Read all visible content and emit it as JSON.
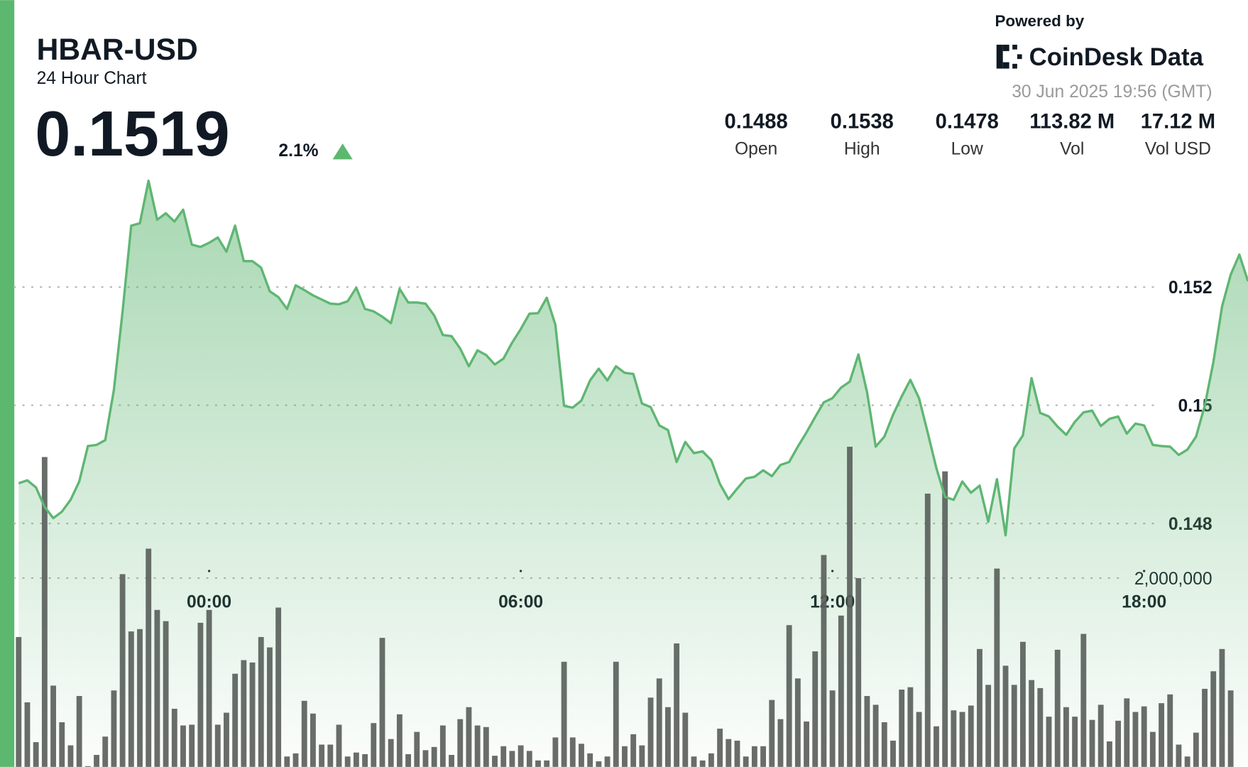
{
  "header": {
    "powered_by": "Powered by",
    "brand": "CoinDesk Data",
    "timestamp": "30 Jun 2025 19:56 (GMT)",
    "price": 0.1519,
    "change": "2.1%",
    "stats": [
      {
        "value": 0.1488,
        "label": "Open"
      },
      {
        "value": 0.1538,
        "label": "High"
      },
      {
        "value": 0.1478,
        "label": "Low"
      },
      {
        "value": "113.82 M",
        "label": "Vol"
      },
      {
        "value": "17.12 M",
        "label": "Vol USD"
      }
    ]
  },
  "chart_data": {
    "type": "line",
    "title": "HBAR-USD",
    "subtitle": "24 Hour Chart",
    "x": [
      -220,
      -210,
      -200,
      -190,
      -180,
      -170,
      -160,
      -150,
      -140,
      -130,
      -120,
      -110,
      -100,
      -90,
      -80,
      -70,
      -60,
      -50,
      -40,
      -30,
      -20,
      -10,
      0,
      10,
      20,
      30,
      40,
      50,
      60,
      70,
      80,
      90,
      100,
      110,
      120,
      130,
      140,
      150,
      160,
      170,
      180,
      190,
      200,
      210,
      220,
      230,
      240,
      250,
      260,
      270,
      280,
      290,
      300,
      310,
      320,
      330,
      340,
      350,
      360,
      370,
      380,
      390,
      400,
      410,
      420,
      430,
      440,
      450,
      460,
      470,
      480,
      490,
      500,
      510,
      520,
      530,
      540,
      550,
      560,
      570,
      580,
      590,
      600,
      610,
      620,
      630,
      640,
      650,
      660,
      670,
      680,
      690,
      700,
      710,
      720,
      730,
      740,
      750,
      760,
      770,
      780,
      790,
      800,
      810,
      820,
      830,
      840,
      850,
      860,
      870,
      880,
      890,
      900,
      910,
      920,
      930,
      940,
      950,
      960,
      970,
      980,
      990,
      1000,
      1010,
      1020,
      1030,
      1040,
      1050,
      1060,
      1070,
      1080,
      1090,
      1100,
      1110,
      1120,
      1130,
      1140,
      1150,
      1160,
      1170,
      1180,
      1190,
      1200
    ],
    "xlim": [
      -225,
      1200
    ],
    "xticks": [
      {
        "value": 0,
        "label": "00:00"
      },
      {
        "value": 360,
        "label": "06:00"
      },
      {
        "value": 720,
        "label": "12:00"
      },
      {
        "value": 1080,
        "label": "18:00"
      }
    ],
    "ylim": [
      0.14388,
      0.15396
    ],
    "yticks": [
      0.148,
      0.15,
      0.152
    ],
    "y2lim": [
      0,
      6310000
    ],
    "y2ticks": [
      {
        "value": 2000000,
        "label": "2,000,000"
      }
    ],
    "grid": true,
    "series": [
      {
        "color": "#5fb672",
        "values": [
          0.14868,
          0.14873,
          0.14861,
          0.14828,
          0.14809,
          0.1482,
          0.1484,
          0.14871,
          0.14931,
          0.14933,
          0.14941,
          0.15026,
          0.15158,
          0.15304,
          0.15308,
          0.1538,
          0.15314,
          0.15325,
          0.15311,
          0.15331,
          0.15272,
          0.15268,
          0.15275,
          0.15284,
          0.1526,
          0.15304,
          0.15244,
          0.15244,
          0.15233,
          0.15193,
          0.15183,
          0.15163,
          0.15203,
          0.15195,
          0.15186,
          0.15179,
          0.15172,
          0.15171,
          0.15176,
          0.15199,
          0.15163,
          0.15159,
          0.1515,
          0.15139,
          0.15197,
          0.15174,
          0.15174,
          0.15172,
          0.15152,
          0.15119,
          0.15117,
          0.15096,
          0.15066,
          0.15093,
          0.15085,
          0.15069,
          0.15079,
          0.15106,
          0.15129,
          0.15155,
          0.15156,
          0.15182,
          0.15136,
          0.14999,
          0.14996,
          0.15008,
          0.15042,
          0.15062,
          0.15042,
          0.15066,
          0.15055,
          0.15053,
          0.15003,
          0.14997,
          0.14966,
          0.14958,
          0.14904,
          0.14938,
          0.14919,
          0.14922,
          0.14907,
          0.14867,
          0.14841,
          0.14859,
          0.14876,
          0.14879,
          0.1489,
          0.1488,
          0.14899,
          0.14904,
          0.1493,
          0.14954,
          0.1498,
          0.15005,
          0.15012,
          0.1503,
          0.1504,
          0.15086,
          0.15022,
          0.1493,
          0.14947,
          0.14984,
          0.15015,
          0.15043,
          0.15012,
          0.14954,
          0.14894,
          0.14845,
          0.1484,
          0.14871,
          0.14852,
          0.14864,
          0.14803,
          0.14875,
          0.1478,
          0.14927,
          0.14949,
          0.15046,
          0.14987,
          0.14981,
          0.14964,
          0.1495,
          0.14972,
          0.14988,
          0.14991,
          0.14965,
          0.14977,
          0.14981,
          0.14952,
          0.14969,
          0.14966,
          0.14933,
          0.14931,
          0.1493,
          0.14916,
          0.14925,
          0.14947,
          0.14999,
          0.15073,
          0.15167,
          0.15221,
          0.15255,
          0.1521
        ]
      },
      {
        "type": "bar",
        "axis": "y2",
        "color": "#5b615c",
        "values": [
          1376000,
          684000,
          262000,
          3283000,
          861000,
          473000,
          228000,
          751000,
          8000,
          127000,
          321000,
          810000,
          2042000,
          1435000,
          1460000,
          2312000,
          1663000,
          1544000,
          616000,
          439000,
          447000,
          1527000,
          1663000,
          447000,
          574000,
          987000,
          1131000,
          1106000,
          1376000,
          1266000,
          1688000,
          110000,
          143000,
          700000,
          565000,
          236000,
          236000,
          447000,
          110000,
          152000,
          135000,
          464000,
          1367000,
          295000,
          557000,
          135000,
          371000,
          177000,
          211000,
          439000,
          127000,
          506000,
          633000,
          439000,
          422000,
          118000,
          219000,
          169000,
          228000,
          169000,
          68000,
          68000,
          312000,
          1114000,
          312000,
          245000,
          143000,
          59000,
          110000,
          1114000,
          219000,
          346000,
          228000,
          734000,
          937000,
          633000,
          1308000,
          574000,
          110000,
          68000,
          143000,
          405000,
          295000,
          278000,
          110000,
          219000,
          219000,
          709000,
          506000,
          1502000,
          937000,
          481000,
          1224000,
          2245000,
          810000,
          1603000,
          3392000,
          2000000,
          751000,
          658000,
          473000,
          278000,
          819000,
          844000,
          582000,
          2895000,
          430000,
          3131000,
          599000,
          582000,
          650000,
          1249000,
          869000,
          2101000,
          1072000,
          869000,
          1325000,
          920000,
          835000,
          532000,
          1241000,
          633000,
          532000,
          1409000,
          498000,
          658000,
          270000,
          489000,
          726000,
          582000,
          641000,
          371000,
          675000,
          768000,
          236000,
          110000,
          363000,
          827000,
          1013000,
          1249000,
          810000,
          null,
          null
        ]
      }
    ]
  }
}
